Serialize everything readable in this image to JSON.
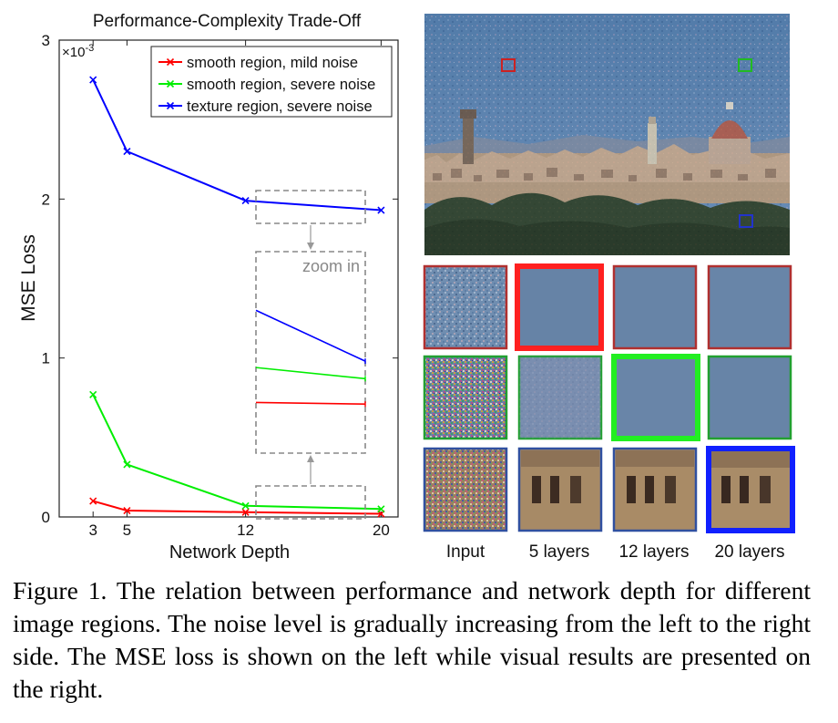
{
  "chart_data": {
    "type": "line",
    "title": "Performance-Complexity Trade-Off",
    "xlabel": "Network Depth",
    "ylabel": "MSE Loss",
    "y_exponent_label": "×10",
    "y_exponent_power": "-3",
    "x": [
      3,
      5,
      12,
      20
    ],
    "xticks": [
      "3",
      "5",
      "12",
      "20"
    ],
    "yticks": [
      "0",
      "1",
      "2",
      "3"
    ],
    "xlim": [
      1,
      21
    ],
    "ylim": [
      0,
      3
    ],
    "series": [
      {
        "name": "smooth region, mild noise",
        "color": "#ff0000",
        "values": [
          0.1,
          0.04,
          0.03,
          0.02
        ]
      },
      {
        "name": "smooth region, severe noise",
        "color": "#00ee00",
        "values": [
          0.77,
          0.33,
          0.07,
          0.05
        ]
      },
      {
        "name": "texture region, severe noise",
        "color": "#0000ff",
        "values": [
          2.75,
          2.3,
          1.99,
          1.93
        ]
      }
    ],
    "legend_position": "top-right",
    "zoom_label": "zoom in",
    "zoom_series": [
      {
        "color": "#0000ff",
        "values": [
          1.3,
          0.98
        ]
      },
      {
        "color": "#00ee00",
        "values": [
          0.94,
          0.87
        ]
      },
      {
        "color": "#ff0000",
        "values": [
          0.72,
          0.71
        ]
      }
    ]
  },
  "image_panel": {
    "column_labels": [
      "Input",
      "5 layers",
      "12 layers",
      "20 layers"
    ],
    "marker_colors": [
      "#cc2222",
      "#22bb22",
      "#2233cc"
    ]
  },
  "caption": "Figure 1. The relation between performance and network depth for different image regions.  The noise level is gradually increasing from the left to the right side. The MSE loss is shown on the left while visual results are presented on the right."
}
